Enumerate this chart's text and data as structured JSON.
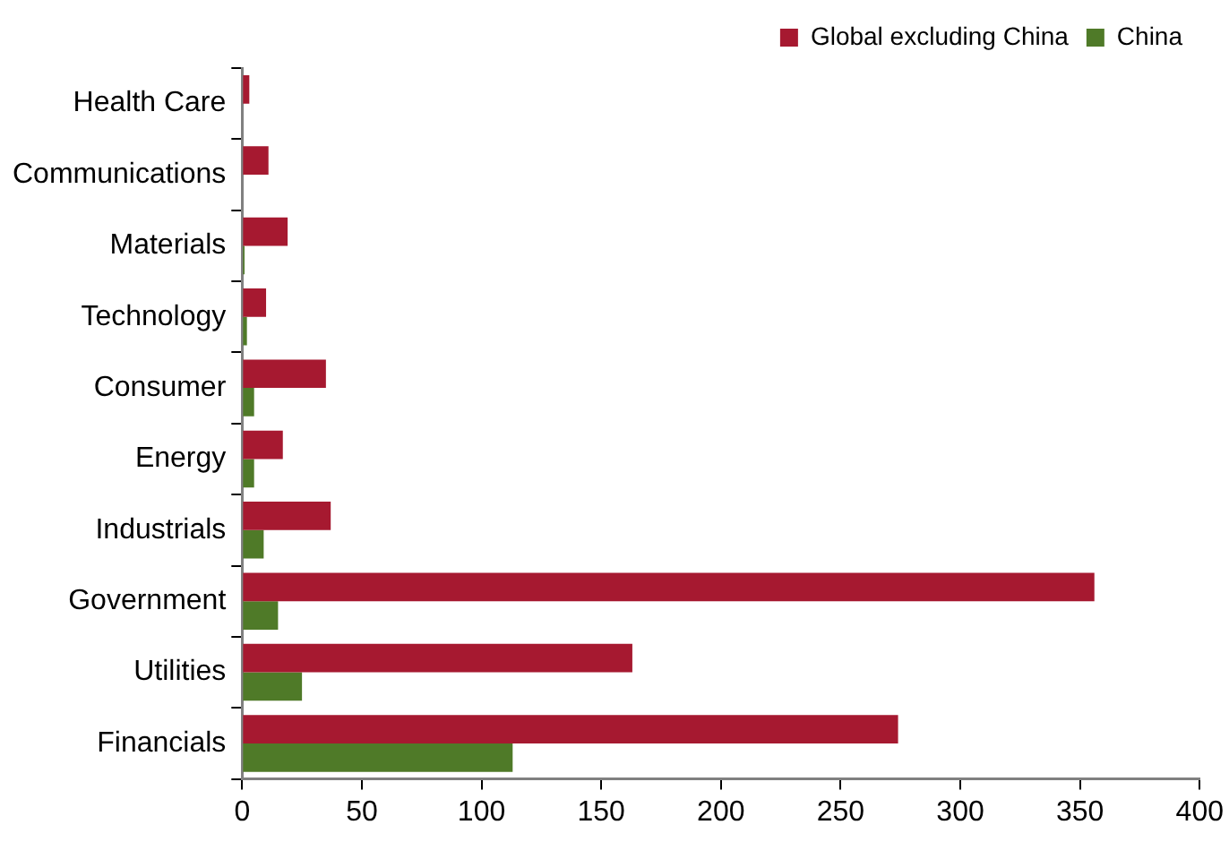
{
  "chart_data": {
    "type": "bar",
    "orientation": "horizontal",
    "categories": [
      "Health Care",
      "Communications",
      "Materials",
      "Technology",
      "Consumer",
      "Energy",
      "Industrials",
      "Government",
      "Utilities",
      "Financials"
    ],
    "series": [
      {
        "name": "Global excluding China",
        "color": "#a61930",
        "values": [
          3,
          11,
          19,
          10,
          35,
          17,
          37,
          356,
          163,
          274
        ]
      },
      {
        "name": "China",
        "color": "#4f7a28",
        "values": [
          0,
          0,
          1,
          2,
          5,
          5,
          9,
          15,
          25,
          113
        ]
      }
    ],
    "xlim": [
      0,
      400
    ],
    "xticks": [
      0,
      50,
      100,
      150,
      200,
      250,
      300,
      350,
      400
    ],
    "grid": false,
    "legend": "top right"
  }
}
